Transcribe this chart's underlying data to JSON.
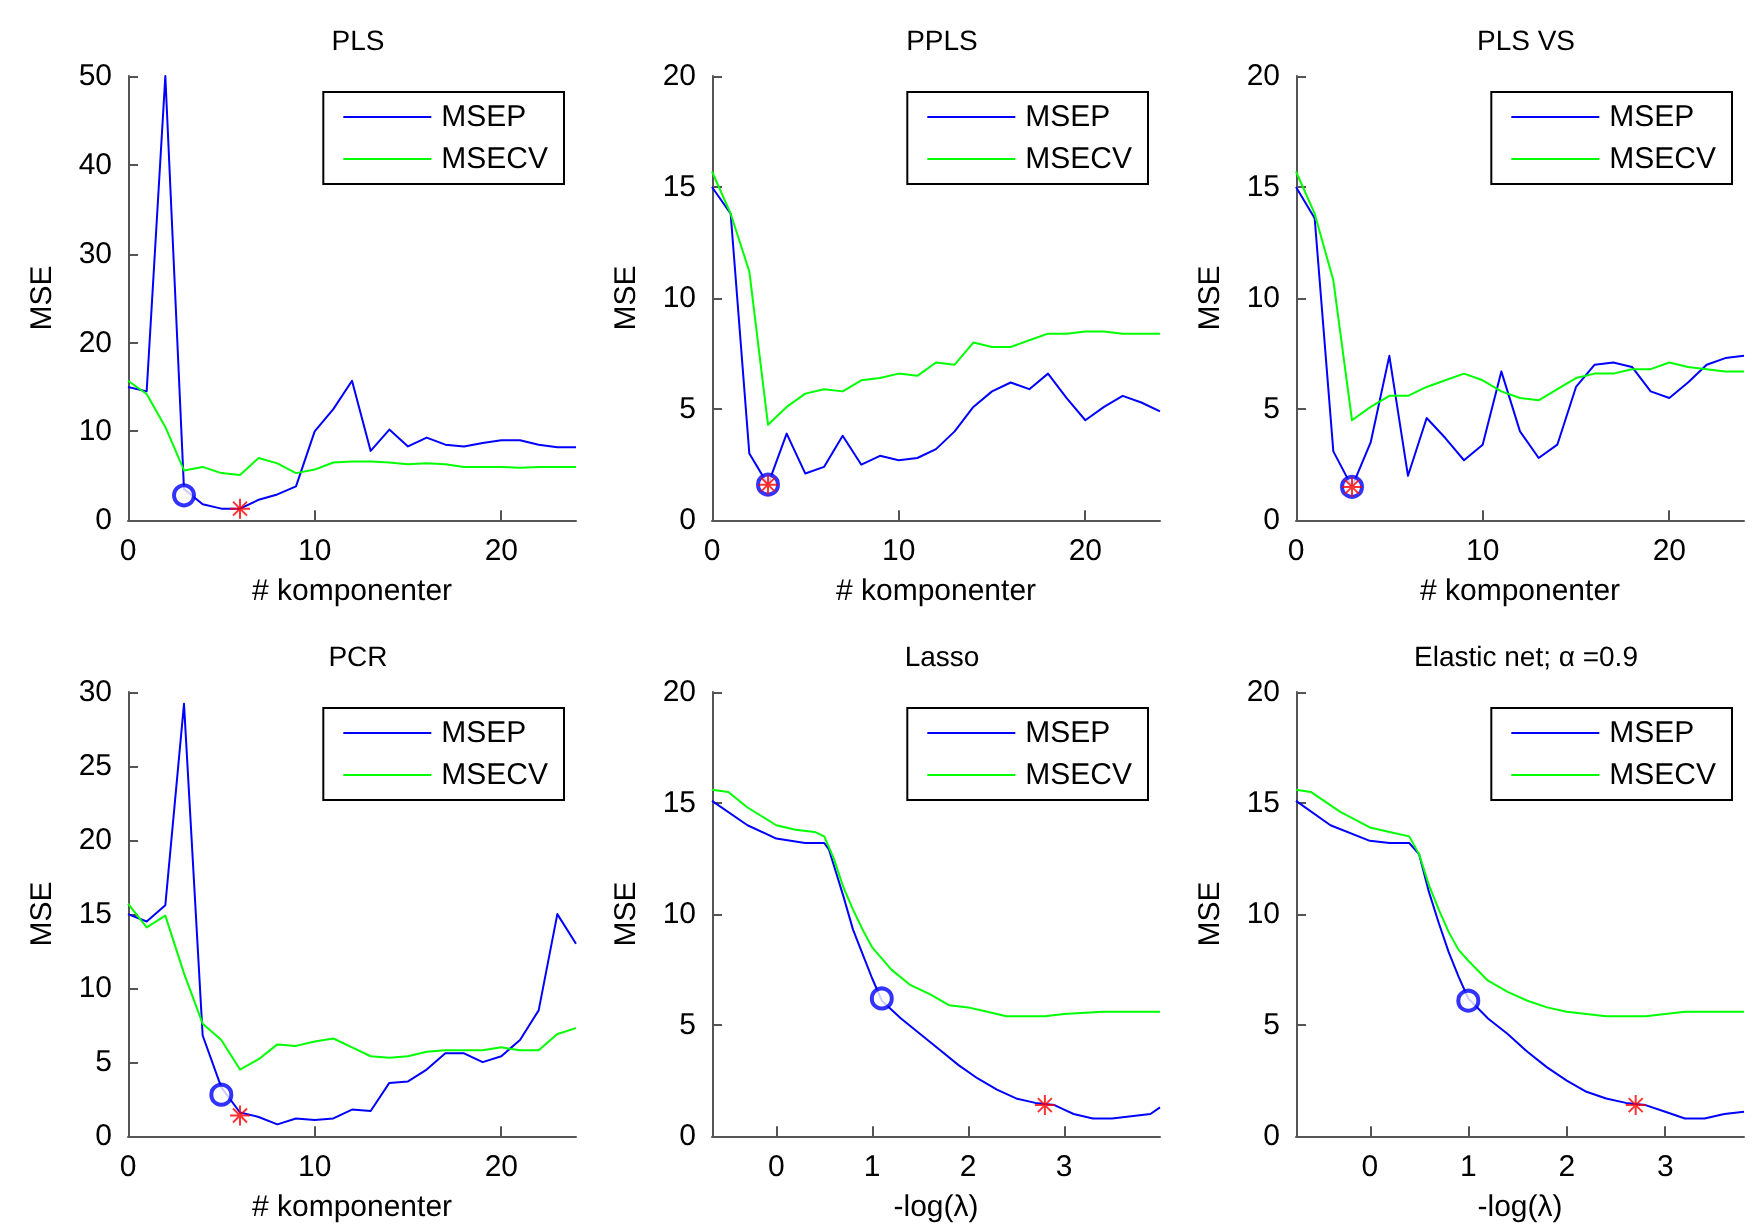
{
  "chart_data": [
    {
      "type": "line",
      "title": "PLS",
      "xlabel": "# komponenter",
      "ylabel": "MSE",
      "xlim": [
        0,
        24
      ],
      "xticks": [
        0,
        10,
        20
      ],
      "ylim": [
        0,
        50
      ],
      "yticks": [
        0,
        10,
        20,
        30,
        40,
        50
      ],
      "grid": false,
      "legend": "top right",
      "series": [
        {
          "name": "MSEP",
          "color": "#0000ff",
          "marker": "none",
          "x": [
            0,
            1,
            2,
            3,
            4,
            5,
            6,
            7,
            8,
            9,
            10,
            11,
            12,
            13,
            14,
            15,
            16,
            17,
            18,
            19,
            20,
            21,
            22,
            23,
            24
          ],
          "values": [
            15,
            14.5,
            50,
            3.5,
            1.8,
            1.3,
            1.3,
            2.3,
            2.9,
            3.8,
            10,
            12.5,
            15.7,
            7.8,
            10.2,
            8.3,
            9.3,
            8.5,
            8.3,
            8.7,
            9,
            9,
            8.5,
            8.2,
            8.2
          ]
        },
        {
          "name": "MSECV",
          "color": "#00ff00",
          "marker": "none",
          "x": [
            0,
            1,
            2,
            3,
            4,
            5,
            6,
            7,
            8,
            9,
            10,
            11,
            12,
            13,
            14,
            15,
            16,
            17,
            18,
            19,
            20,
            21,
            22,
            23,
            24
          ],
          "values": [
            15.7,
            14.2,
            10.5,
            5.6,
            6,
            5.3,
            5.1,
            7,
            6.4,
            5.3,
            5.7,
            6.5,
            6.6,
            6.6,
            6.5,
            6.3,
            6.4,
            6.3,
            6,
            6,
            6,
            5.9,
            6,
            6,
            6
          ]
        },
        {
          "type": "scatter",
          "color": "#0000ff",
          "marker": "circle",
          "x": [
            3
          ],
          "values": [
            2.8
          ]
        },
        {
          "type": "scatter",
          "color": "#ff0000",
          "marker": "cross",
          "x": [
            6
          ],
          "values": [
            1.3
          ]
        }
      ]
    },
    {
      "type": "line",
      "title": "PPLS",
      "xlabel": "# komponenter",
      "ylabel": "MSE",
      "xlim": [
        0,
        24
      ],
      "xticks": [
        0,
        10,
        20
      ],
      "ylim": [
        0,
        20
      ],
      "yticks": [
        0,
        5,
        10,
        15,
        20
      ],
      "grid": false,
      "legend": "top right",
      "series": [
        {
          "name": "MSEP",
          "color": "#0000ff",
          "marker": "none",
          "x": [
            0,
            1,
            2,
            3,
            4,
            5,
            6,
            7,
            8,
            9,
            10,
            11,
            12,
            13,
            14,
            15,
            16,
            17,
            18,
            19,
            20,
            21,
            22,
            23,
            24
          ],
          "values": [
            15,
            13.8,
            3,
            1.6,
            3.9,
            2.1,
            2.4,
            3.8,
            2.5,
            2.9,
            2.7,
            2.8,
            3.2,
            4,
            5.1,
            5.8,
            6.2,
            5.9,
            6.6,
            5.5,
            4.5,
            5.1,
            5.6,
            5.3,
            4.9
          ]
        },
        {
          "name": "MSECV",
          "color": "#00ff00",
          "marker": "none",
          "x": [
            0,
            1,
            2,
            3,
            4,
            5,
            6,
            7,
            8,
            9,
            10,
            11,
            12,
            13,
            14,
            15,
            16,
            17,
            18,
            19,
            20,
            21,
            22,
            23,
            24
          ],
          "values": [
            15.7,
            13.8,
            11.2,
            4.3,
            5.1,
            5.7,
            5.9,
            5.8,
            6.3,
            6.4,
            6.6,
            6.5,
            7.1,
            7,
            8,
            7.8,
            7.8,
            8.1,
            8.4,
            8.4,
            8.5,
            8.5,
            8.4,
            8.4,
            8.4
          ]
        },
        {
          "type": "scatter",
          "color": "#0000ff",
          "marker": "circle",
          "x": [
            3
          ],
          "values": [
            1.6
          ]
        },
        {
          "type": "scatter",
          "color": "#ff0000",
          "marker": "cross",
          "x": [
            3
          ],
          "values": [
            1.6
          ]
        }
      ]
    },
    {
      "type": "line",
      "title": "PLS VS",
      "xlabel": "# komponenter",
      "ylabel": "MSE",
      "xlim": [
        0,
        24
      ],
      "xticks": [
        0,
        10,
        20
      ],
      "ylim": [
        0,
        20
      ],
      "yticks": [
        0,
        5,
        10,
        15,
        20
      ],
      "grid": false,
      "legend": "top right",
      "series": [
        {
          "name": "MSEP",
          "color": "#0000ff",
          "marker": "none",
          "x": [
            0,
            1,
            2,
            3,
            4,
            5,
            6,
            7,
            8,
            9,
            10,
            11,
            12,
            13,
            14,
            15,
            16,
            17,
            18,
            19,
            20,
            21,
            22,
            23,
            24
          ],
          "values": [
            15,
            13.6,
            3.1,
            1.5,
            3.5,
            7.4,
            2,
            4.6,
            3.7,
            2.7,
            3.4,
            6.7,
            4,
            2.8,
            3.4,
            6,
            7,
            7.1,
            6.9,
            5.8,
            5.5,
            6.2,
            7,
            7.3,
            7.4
          ]
        },
        {
          "name": "MSECV",
          "color": "#00ff00",
          "marker": "none",
          "x": [
            0,
            1,
            2,
            3,
            4,
            5,
            6,
            7,
            8,
            9,
            10,
            11,
            12,
            13,
            14,
            15,
            16,
            17,
            18,
            19,
            20,
            21,
            22,
            23,
            24
          ],
          "values": [
            15.7,
            13.8,
            10.8,
            4.5,
            5.1,
            5.6,
            5.6,
            6,
            6.3,
            6.6,
            6.3,
            5.8,
            5.5,
            5.4,
            5.9,
            6.4,
            6.6,
            6.6,
            6.8,
            6.8,
            7.1,
            6.9,
            6.8,
            6.7,
            6.7
          ]
        },
        {
          "type": "scatter",
          "color": "#0000ff",
          "marker": "circle",
          "x": [
            3
          ],
          "values": [
            1.5
          ]
        },
        {
          "type": "scatter",
          "color": "#ff0000",
          "marker": "cross",
          "x": [
            3
          ],
          "values": [
            1.5
          ]
        }
      ]
    },
    {
      "type": "line",
      "title": "PCR",
      "xlabel": "# komponenter",
      "ylabel": "MSE",
      "xlim": [
        0,
        24
      ],
      "xticks": [
        0,
        10,
        20
      ],
      "ylim": [
        0,
        30
      ],
      "yticks": [
        0,
        5,
        10,
        15,
        20,
        25,
        30
      ],
      "grid": false,
      "legend": "top right",
      "series": [
        {
          "name": "MSEP",
          "color": "#0000ff",
          "marker": "none",
          "x": [
            0,
            1,
            2,
            3,
            4,
            5,
            6,
            7,
            8,
            9,
            10,
            11,
            12,
            13,
            14,
            15,
            16,
            17,
            18,
            19,
            20,
            21,
            22,
            23,
            24
          ],
          "values": [
            15,
            14.5,
            15.6,
            29.2,
            6.8,
            3.3,
            1.6,
            1.3,
            0.8,
            1.2,
            1.1,
            1.2,
            1.8,
            1.7,
            3.6,
            3.7,
            4.5,
            5.6,
            5.6,
            5,
            5.4,
            6.5,
            8.5,
            15,
            13
          ]
        },
        {
          "name": "MSECV",
          "color": "#00ff00",
          "marker": "none",
          "x": [
            0,
            1,
            2,
            3,
            4,
            5,
            6,
            7,
            8,
            9,
            10,
            11,
            12,
            13,
            14,
            15,
            16,
            17,
            18,
            19,
            20,
            21,
            22,
            23,
            24
          ],
          "values": [
            15.7,
            14.1,
            14.9,
            11,
            7.6,
            6.5,
            4.5,
            5.2,
            6.2,
            6.1,
            6.4,
            6.6,
            6,
            5.4,
            5.3,
            5.4,
            5.7,
            5.8,
            5.8,
            5.8,
            6,
            5.8,
            5.8,
            6.9,
            7.3
          ]
        },
        {
          "type": "scatter",
          "color": "#0000ff",
          "marker": "circle",
          "x": [
            5
          ],
          "values": [
            2.8
          ]
        },
        {
          "type": "scatter",
          "color": "#ff0000",
          "marker": "cross",
          "x": [
            6
          ],
          "values": [
            1.4
          ]
        }
      ]
    },
    {
      "type": "line",
      "title": "Lasso",
      "xlabel": "-log(λ)",
      "ylabel": "MSE",
      "xlim": [
        -0.67,
        4
      ],
      "xticks": [
        0,
        1,
        2,
        3
      ],
      "ylim": [
        0,
        20
      ],
      "yticks": [
        0,
        5,
        10,
        15,
        20
      ],
      "grid": false,
      "legend": "top right",
      "series": [
        {
          "name": "MSEP",
          "color": "#0000ff",
          "marker": "none",
          "x": [
            -0.67,
            -0.3,
            0,
            0.3,
            0.5,
            0.55,
            0.7,
            0.8,
            0.9,
            1,
            1.1,
            1.3,
            1.5,
            1.7,
            1.9,
            2.1,
            2.3,
            2.5,
            2.7,
            2.9,
            3,
            3.1,
            3.3,
            3.5,
            3.7,
            3.9,
            4
          ],
          "values": [
            15.1,
            14,
            13.4,
            13.2,
            13.2,
            12.9,
            10.8,
            9.3,
            8.2,
            7.1,
            6.1,
            5.3,
            4.6,
            3.9,
            3.2,
            2.6,
            2.1,
            1.7,
            1.5,
            1.4,
            1.2,
            1,
            0.8,
            0.8,
            0.9,
            1,
            1.3
          ]
        },
        {
          "name": "MSECV",
          "color": "#00ff00",
          "marker": "none",
          "x": [
            -0.67,
            -0.5,
            -0.3,
            0,
            0.2,
            0.4,
            0.5,
            0.6,
            0.7,
            0.8,
            0.9,
            1,
            1.2,
            1.4,
            1.6,
            1.8,
            2,
            2.2,
            2.4,
            2.6,
            2.8,
            3,
            3.4,
            3.8,
            4
          ],
          "values": [
            15.6,
            15.5,
            14.8,
            14,
            13.8,
            13.7,
            13.5,
            12.5,
            11.2,
            10.2,
            9.3,
            8.5,
            7.5,
            6.8,
            6.4,
            5.9,
            5.8,
            5.6,
            5.4,
            5.4,
            5.4,
            5.5,
            5.6,
            5.6,
            5.6
          ]
        },
        {
          "type": "scatter",
          "color": "#0000ff",
          "marker": "circle",
          "x": [
            1.1
          ],
          "values": [
            6.2
          ]
        },
        {
          "type": "scatter",
          "color": "#ff0000",
          "marker": "cross",
          "x": [
            2.8
          ],
          "values": [
            1.4
          ]
        }
      ]
    },
    {
      "type": "line",
      "title": "Elastic net; α =0.9",
      "xlabel": "-log(λ)",
      "ylabel": "MSE",
      "xlim": [
        -0.75,
        3.8
      ],
      "xticks": [
        0,
        1,
        2,
        3
      ],
      "ylim": [
        0,
        20
      ],
      "yticks": [
        0,
        5,
        10,
        15,
        20
      ],
      "grid": false,
      "legend": "top right",
      "series": [
        {
          "name": "MSEP",
          "color": "#0000ff",
          "marker": "none",
          "x": [
            -0.75,
            -0.4,
            0,
            0.2,
            0.4,
            0.5,
            0.6,
            0.7,
            0.8,
            0.9,
            1,
            1.2,
            1.4,
            1.6,
            1.8,
            2,
            2.2,
            2.4,
            2.6,
            2.8,
            3,
            3.2,
            3.4,
            3.6,
            3.8
          ],
          "values": [
            15.1,
            14,
            13.3,
            13.2,
            13.2,
            12.7,
            11,
            9.6,
            8.3,
            7.2,
            6.2,
            5.3,
            4.6,
            3.8,
            3.1,
            2.5,
            2,
            1.7,
            1.5,
            1.4,
            1.1,
            0.8,
            0.8,
            1,
            1.1
          ]
        },
        {
          "name": "MSECV",
          "color": "#00ff00",
          "marker": "none",
          "x": [
            -0.75,
            -0.6,
            -0.3,
            0,
            0.2,
            0.4,
            0.5,
            0.6,
            0.7,
            0.8,
            0.9,
            1,
            1.2,
            1.4,
            1.6,
            1.8,
            2,
            2.2,
            2.4,
            2.6,
            2.8,
            3,
            3.2,
            3.5,
            3.8
          ],
          "values": [
            15.6,
            15.5,
            14.6,
            13.9,
            13.7,
            13.5,
            12.7,
            11.3,
            10.2,
            9.2,
            8.4,
            7.9,
            7,
            6.5,
            6.1,
            5.8,
            5.6,
            5.5,
            5.4,
            5.4,
            5.4,
            5.5,
            5.6,
            5.6,
            5.6
          ]
        },
        {
          "type": "scatter",
          "color": "#0000ff",
          "marker": "circle",
          "x": [
            1
          ],
          "values": [
            6.1
          ]
        },
        {
          "type": "scatter",
          "color": "#ff0000",
          "marker": "cross",
          "x": [
            2.7
          ],
          "values": [
            1.4
          ]
        }
      ]
    }
  ]
}
